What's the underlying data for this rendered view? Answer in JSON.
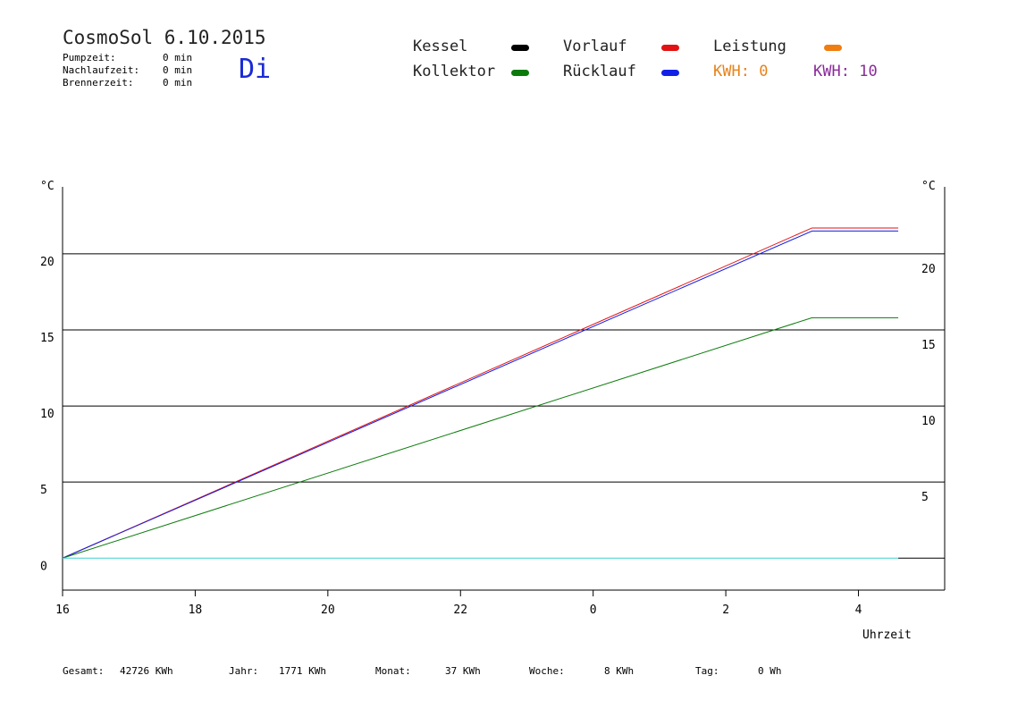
{
  "header": {
    "title": "CosmoSol 6.10.2015",
    "day": "Di",
    "stats": [
      {
        "label": "Pumpzeit:",
        "value": "0 min"
      },
      {
        "label": "Nachlaufzeit:",
        "value": "0 min"
      },
      {
        "label": "Brennerzeit:",
        "value": "0 min"
      }
    ]
  },
  "legend": {
    "kessel": {
      "label": "Kessel",
      "color": "#000000"
    },
    "vorlauf": {
      "label": "Vorlauf",
      "color": "#e31313"
    },
    "leistung": {
      "label": "Leistung",
      "color": "#f07d10"
    },
    "kollektor": {
      "label": "Kollektor",
      "color": "#0a7a0a"
    },
    "ruecklauf": {
      "label": "Rücklauf",
      "color": "#1220e6"
    },
    "kwh_orange": {
      "label": "KWH:",
      "value": "0",
      "color": "#e8821a"
    },
    "kwh_purple": {
      "label": "KWH:",
      "value": "10",
      "color": "#8a2a9a"
    }
  },
  "footer": {
    "gesamt": {
      "label": "Gesamt:",
      "value": "42726 KWh"
    },
    "jahr": {
      "label": "Jahr:",
      "value": "1771 KWh"
    },
    "monat": {
      "label": "Monat:",
      "value": "37 KWh"
    },
    "woche": {
      "label": "Woche:",
      "value": "8 KWh"
    },
    "tag": {
      "label": "Tag:",
      "value": "0 Wh"
    }
  },
  "chart_data": {
    "type": "line",
    "y_unit_left": "°C",
    "y_unit_right": "°C",
    "xlabel": "Uhrzeit",
    "x_ticks": [
      "16",
      "18",
      "20",
      "22",
      "0",
      "2",
      "4"
    ],
    "y_ticks": [
      0,
      5,
      10,
      15,
      20
    ],
    "ylim": [
      -2.1,
      24.4
    ],
    "xlim": [
      16,
      29.3
    ],
    "grid_y": [
      5,
      10,
      15,
      20
    ],
    "series": [
      {
        "key": "vorlauf",
        "color": "#e31313",
        "points": [
          [
            16,
            0
          ],
          [
            27.3,
            21.7
          ],
          [
            28.6,
            21.7
          ]
        ]
      },
      {
        "key": "ruecklauf",
        "color": "#1220e6",
        "points": [
          [
            16,
            0
          ],
          [
            27.3,
            21.5
          ],
          [
            28.6,
            21.5
          ]
        ]
      },
      {
        "key": "kollektor",
        "color": "#0a7a0a",
        "points": [
          [
            16,
            0
          ],
          [
            27.3,
            15.8
          ],
          [
            28.6,
            15.8
          ]
        ]
      },
      {
        "key": "cyan",
        "color": "#3fd0d0",
        "points": [
          [
            16,
            0
          ],
          [
            28.6,
            0
          ]
        ]
      }
    ]
  }
}
